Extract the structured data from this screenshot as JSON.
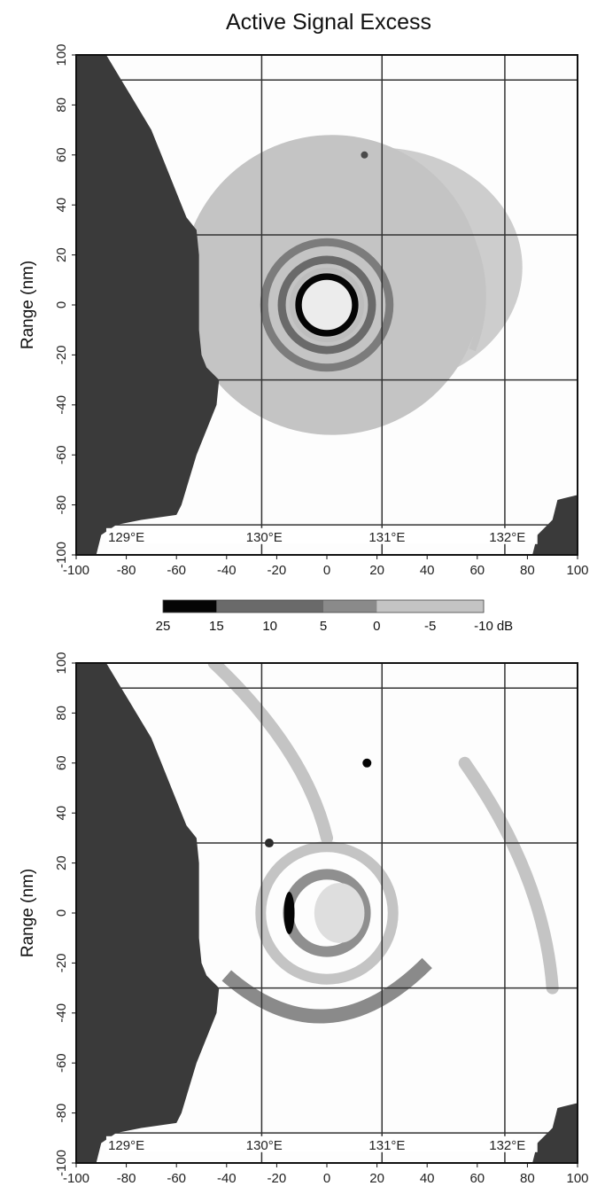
{
  "title": "Active Signal Excess",
  "chart_data": [
    {
      "type": "heatmap",
      "panel": "top",
      "ylabel": "Range (nm)",
      "xlabel": "",
      "xlim": [
        -100,
        100
      ],
      "ylim": [
        -100,
        100
      ],
      "x_ticks": [
        "-100",
        "-80",
        "-60",
        "-40",
        "-20",
        "0",
        "20",
        "40",
        "60",
        "80",
        "100"
      ],
      "y_ticks": [
        "100",
        "80",
        "60",
        "40",
        "20",
        "0",
        "-20",
        "-40",
        "-60",
        "-80",
        "-100"
      ],
      "grid": true,
      "longitude_labels": [
        "129°E",
        "130°E",
        "131°E",
        "132°E"
      ],
      "grid_lines_x": [
        -26,
        22,
        71
      ],
      "grid_lines_y": [
        90,
        28,
        -30,
        -88
      ],
      "land_color": "#3a3a3a",
      "shading": {
        "-10_-5": "#c4c4c4",
        "-5_0": "#c4c4c4",
        "0_5": "#8a8a8a",
        "5_10": "#6a6a6a",
        "15_25": "#050505"
      },
      "rings": [
        {
          "cx": 0,
          "cy": 0,
          "r": 68,
          "level_db": -5
        },
        {
          "cx": 0,
          "cy": 0,
          "r": 50,
          "level_db": 5
        },
        {
          "cx": 0,
          "cy": 0,
          "r": 36,
          "level_db": 10
        },
        {
          "cx": 0,
          "cy": 0,
          "r": 22,
          "level_db": 25
        },
        {
          "cx": 0,
          "cy": 0,
          "r": 12,
          "level_db": 15
        }
      ]
    },
    {
      "type": "heatmap",
      "panel": "bottom",
      "ylabel": "Range (nm)",
      "xlabel": "",
      "xlim": [
        -100,
        100
      ],
      "ylim": [
        -100,
        100
      ],
      "x_ticks": [
        "-100",
        "-80",
        "-60",
        "-40",
        "-20",
        "0",
        "20",
        "40",
        "60",
        "80",
        "100"
      ],
      "y_ticks": [
        "100",
        "80",
        "60",
        "40",
        "20",
        "0",
        "-20",
        "-40",
        "-60",
        "-80",
        "-100"
      ],
      "grid": true,
      "longitude_labels": [
        "129°E",
        "130°E",
        "131°E",
        "132°E"
      ],
      "grid_lines_x": [
        -26,
        22,
        71
      ],
      "grid_lines_y": [
        90,
        28,
        -30,
        -88
      ],
      "land_color": "#3a3a3a",
      "features": [
        {
          "kind": "ring",
          "cx": 0,
          "cy": 0,
          "r": 48,
          "level_db": -5
        },
        {
          "kind": "ring",
          "cx": 0,
          "cy": 0,
          "r": 28,
          "level_db": 0
        },
        {
          "kind": "band",
          "level_db": -5,
          "x_range": [
            -45,
            0
          ],
          "y_range": [
            30,
            100
          ]
        },
        {
          "kind": "band",
          "level_db": -5,
          "x_range": [
            55,
            90
          ],
          "y_range": [
            -30,
            60
          ]
        },
        {
          "kind": "patch",
          "level_db": 25,
          "x": -15,
          "y": 0
        },
        {
          "kind": "patch",
          "level_db": 15,
          "x": -23,
          "y": 28
        },
        {
          "kind": "patch",
          "level_db": 25,
          "x": 16,
          "y": 60
        }
      ]
    }
  ],
  "colorbar": {
    "labels": [
      "25",
      "15",
      "10",
      "5",
      "0",
      "-5",
      "-10"
    ],
    "unit": "dB",
    "segments": [
      {
        "from": "25",
        "to": "15",
        "color": "#050505"
      },
      {
        "from": "15",
        "to": "10",
        "color": "#6a6a6a"
      },
      {
        "from": "10",
        "to": "5",
        "color": "#6a6a6a"
      },
      {
        "from": "5",
        "to": "0",
        "color": "#8a8a8a"
      },
      {
        "from": "0",
        "to": "-5",
        "color": "#c4c4c4"
      },
      {
        "from": "-5",
        "to": "-10",
        "color": "#c4c4c4"
      }
    ]
  }
}
